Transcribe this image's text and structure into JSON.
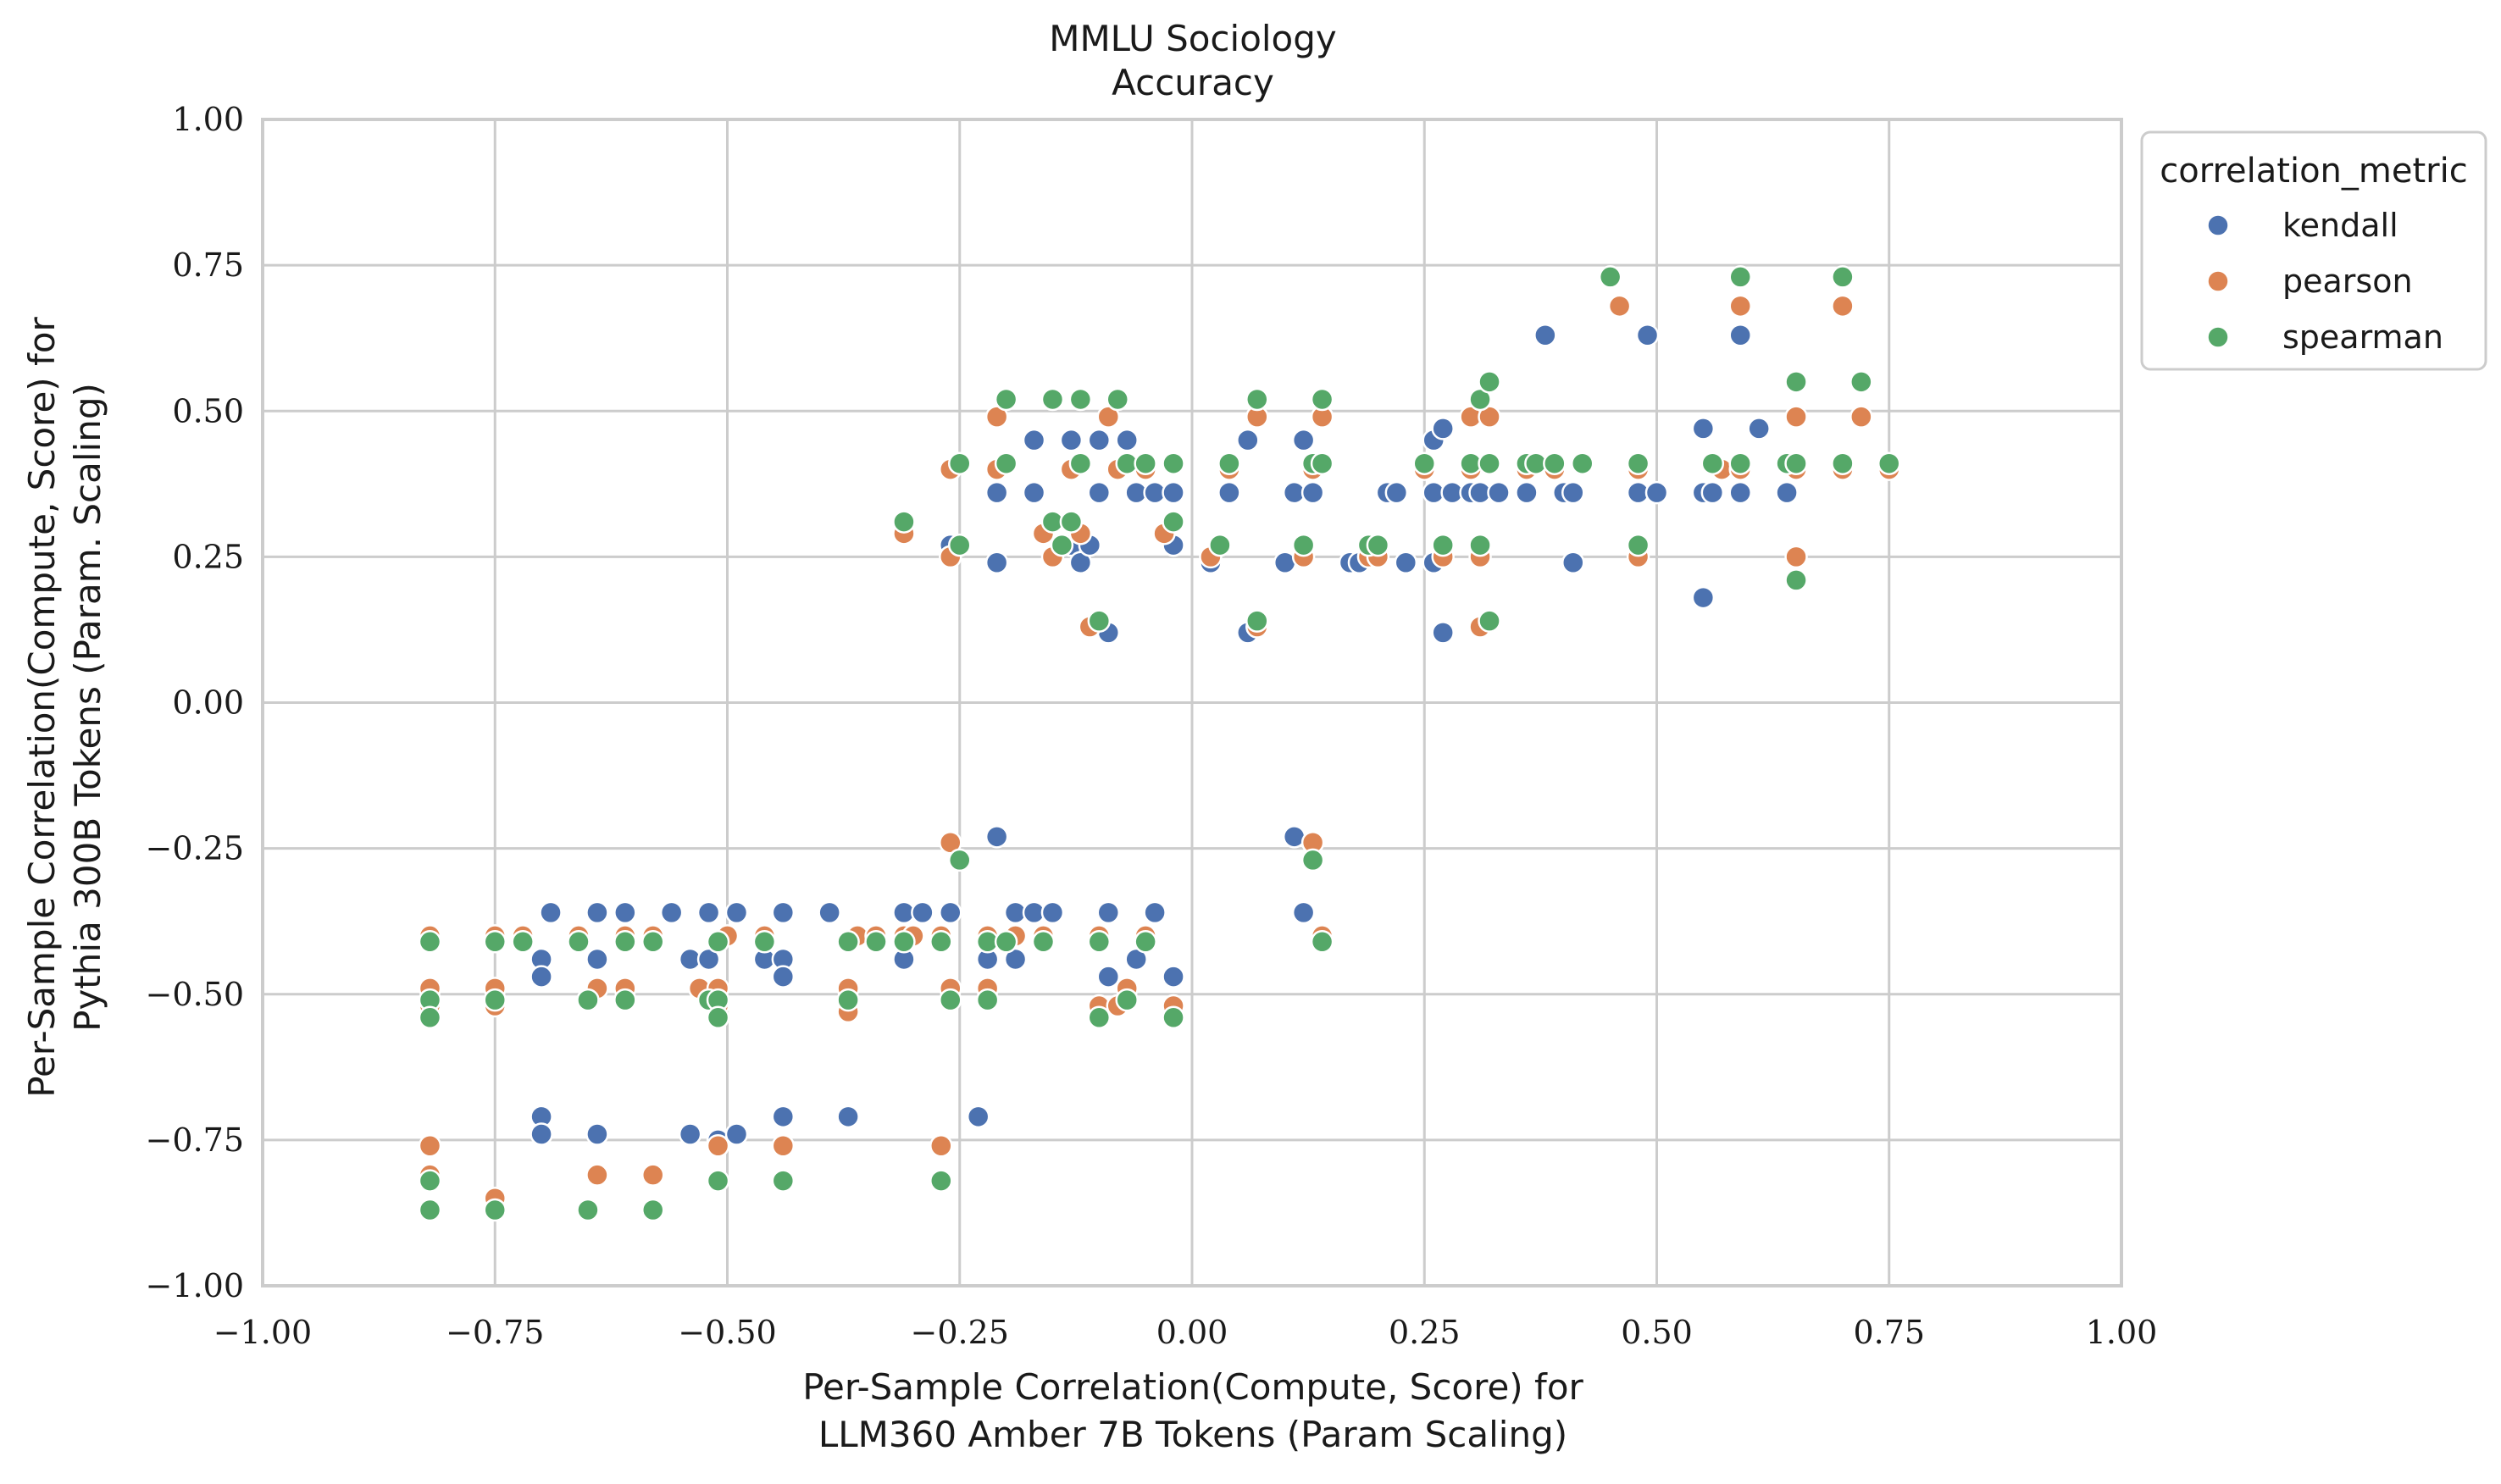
{
  "chart_data": {
    "type": "scatter",
    "title": "MMLU Sociology",
    "subtitle": "Accuracy",
    "xlabel": [
      "Per-Sample Correlation(Compute, Score) for",
      "LLM360 Amber 7B Tokens (Param Scaling)"
    ],
    "ylabel": [
      "Per-Sample Correlation(Compute, Score) for",
      "Pythia 300B Tokens (Param. Scaling)"
    ],
    "xlim": [
      -1.0,
      1.0
    ],
    "ylim": [
      -1.0,
      1.0
    ],
    "xticks": [
      -1.0,
      -0.75,
      -0.5,
      -0.25,
      0.0,
      0.25,
      0.5,
      0.75,
      1.0
    ],
    "yticks": [
      -1.0,
      -0.75,
      -0.5,
      -0.25,
      0.0,
      0.25,
      0.5,
      0.75,
      1.0
    ],
    "xtick_labels": [
      "−1.00",
      "−0.75",
      "−0.50",
      "−0.25",
      "0.00",
      "0.25",
      "0.50",
      "0.75",
      "1.00"
    ],
    "ytick_labels": [
      "−1.00",
      "−0.75",
      "−0.50",
      "−0.25",
      "0.00",
      "0.25",
      "0.50",
      "0.75",
      "1.00"
    ],
    "grid": true,
    "legend": {
      "title": "correlation_metric",
      "placement": "outside-top-right"
    },
    "series": [
      {
        "name": "kendall",
        "color": "#4c72b0",
        "points": [
          [
            -0.69,
            -0.36
          ],
          [
            -0.7,
            -0.44
          ],
          [
            -0.7,
            -0.47
          ],
          [
            -0.64,
            -0.36
          ],
          [
            -0.64,
            -0.44
          ],
          [
            -0.61,
            -0.36
          ],
          [
            -0.56,
            -0.36
          ],
          [
            -0.54,
            -0.44
          ],
          [
            -0.52,
            -0.36
          ],
          [
            -0.52,
            -0.44
          ],
          [
            -0.49,
            -0.36
          ],
          [
            -0.46,
            -0.44
          ],
          [
            -0.44,
            -0.36
          ],
          [
            -0.44,
            -0.44
          ],
          [
            -0.44,
            -0.47
          ],
          [
            -0.39,
            -0.36
          ],
          [
            -0.31,
            -0.36
          ],
          [
            -0.31,
            -0.44
          ],
          [
            -0.29,
            -0.36
          ],
          [
            -0.26,
            -0.36
          ],
          [
            -0.22,
            -0.44
          ],
          [
            -0.21,
            -0.23
          ],
          [
            -0.19,
            -0.36
          ],
          [
            -0.19,
            -0.44
          ],
          [
            -0.17,
            -0.36
          ],
          [
            -0.15,
            -0.36
          ],
          [
            -0.09,
            -0.36
          ],
          [
            -0.09,
            -0.47
          ],
          [
            -0.06,
            -0.44
          ],
          [
            -0.04,
            -0.36
          ],
          [
            -0.02,
            -0.47
          ],
          [
            -0.7,
            -0.71
          ],
          [
            -0.7,
            -0.74
          ],
          [
            -0.64,
            -0.74
          ],
          [
            -0.54,
            -0.74
          ],
          [
            -0.51,
            -0.75
          ],
          [
            -0.49,
            -0.74
          ],
          [
            -0.44,
            -0.71
          ],
          [
            -0.37,
            -0.71
          ],
          [
            -0.23,
            -0.71
          ],
          [
            0.11,
            -0.23
          ],
          [
            0.12,
            -0.36
          ],
          [
            -0.26,
            0.27
          ],
          [
            -0.21,
            0.36
          ],
          [
            -0.21,
            0.24
          ],
          [
            -0.17,
            0.45
          ],
          [
            -0.17,
            0.36
          ],
          [
            -0.13,
            0.45
          ],
          [
            -0.13,
            0.27
          ],
          [
            -0.12,
            0.24
          ],
          [
            -0.11,
            0.27
          ],
          [
            -0.1,
            0.45
          ],
          [
            -0.1,
            0.36
          ],
          [
            -0.09,
            0.12
          ],
          [
            -0.07,
            0.45
          ],
          [
            -0.06,
            0.36
          ],
          [
            -0.04,
            0.36
          ],
          [
            -0.02,
            0.36
          ],
          [
            -0.02,
            0.27
          ],
          [
            0.02,
            0.24
          ],
          [
            0.04,
            0.36
          ],
          [
            0.06,
            0.12
          ],
          [
            0.06,
            0.45
          ],
          [
            0.1,
            0.24
          ],
          [
            0.11,
            0.36
          ],
          [
            0.12,
            0.45
          ],
          [
            0.13,
            0.36
          ],
          [
            0.17,
            0.24
          ],
          [
            0.18,
            0.24
          ],
          [
            0.21,
            0.36
          ],
          [
            0.22,
            0.36
          ],
          [
            0.23,
            0.24
          ],
          [
            0.26,
            0.36
          ],
          [
            0.26,
            0.24
          ],
          [
            0.26,
            0.45
          ],
          [
            0.27,
            0.12
          ],
          [
            0.27,
            0.47
          ],
          [
            0.28,
            0.36
          ],
          [
            0.3,
            0.36
          ],
          [
            0.31,
            0.36
          ],
          [
            0.33,
            0.36
          ],
          [
            0.36,
            0.36
          ],
          [
            0.38,
            0.63
          ],
          [
            0.4,
            0.36
          ],
          [
            0.41,
            0.24
          ],
          [
            0.41,
            0.36
          ],
          [
            0.48,
            0.36
          ],
          [
            0.49,
            0.63
          ],
          [
            0.5,
            0.36
          ],
          [
            0.55,
            0.36
          ],
          [
            0.55,
            0.47
          ],
          [
            0.55,
            0.18
          ],
          [
            0.56,
            0.36
          ],
          [
            0.59,
            0.63
          ],
          [
            0.59,
            0.36
          ],
          [
            0.61,
            0.47
          ],
          [
            0.64,
            0.36
          ]
        ]
      },
      {
        "name": "pearson",
        "color": "#dd8452",
        "points": [
          [
            -0.82,
            -0.4
          ],
          [
            -0.82,
            -0.49
          ],
          [
            -0.82,
            -0.52
          ],
          [
            -0.75,
            -0.4
          ],
          [
            -0.75,
            -0.49
          ],
          [
            -0.75,
            -0.52
          ],
          [
            -0.72,
            -0.4
          ],
          [
            -0.66,
            -0.4
          ],
          [
            -0.64,
            -0.49
          ],
          [
            -0.61,
            -0.4
          ],
          [
            -0.61,
            -0.49
          ],
          [
            -0.58,
            -0.4
          ],
          [
            -0.53,
            -0.49
          ],
          [
            -0.51,
            -0.49
          ],
          [
            -0.51,
            -0.52
          ],
          [
            -0.5,
            -0.4
          ],
          [
            -0.46,
            -0.4
          ],
          [
            -0.37,
            -0.49
          ],
          [
            -0.37,
            -0.53
          ],
          [
            -0.36,
            -0.4
          ],
          [
            -0.34,
            -0.4
          ],
          [
            -0.31,
            -0.4
          ],
          [
            -0.3,
            -0.4
          ],
          [
            -0.27,
            -0.4
          ],
          [
            -0.26,
            -0.49
          ],
          [
            -0.26,
            -0.24
          ],
          [
            -0.22,
            -0.4
          ],
          [
            -0.22,
            -0.49
          ],
          [
            -0.19,
            -0.4
          ],
          [
            -0.16,
            -0.4
          ],
          [
            -0.1,
            -0.4
          ],
          [
            -0.1,
            -0.52
          ],
          [
            -0.08,
            -0.52
          ],
          [
            -0.07,
            -0.49
          ],
          [
            -0.05,
            -0.4
          ],
          [
            -0.02,
            -0.52
          ],
          [
            -0.82,
            -0.76
          ],
          [
            -0.82,
            -0.81
          ],
          [
            -0.75,
            -0.85
          ],
          [
            -0.64,
            -0.81
          ],
          [
            -0.58,
            -0.81
          ],
          [
            -0.51,
            -0.76
          ],
          [
            -0.44,
            -0.76
          ],
          [
            -0.27,
            -0.76
          ],
          [
            0.13,
            -0.24
          ],
          [
            0.14,
            -0.4
          ],
          [
            -0.31,
            0.29
          ],
          [
            -0.26,
            0.4
          ],
          [
            -0.26,
            0.25
          ],
          [
            -0.21,
            0.49
          ],
          [
            -0.21,
            0.4
          ],
          [
            -0.16,
            0.29
          ],
          [
            -0.15,
            0.25
          ],
          [
            -0.13,
            0.4
          ],
          [
            -0.12,
            0.29
          ],
          [
            -0.11,
            0.13
          ],
          [
            -0.09,
            0.49
          ],
          [
            -0.08,
            0.4
          ],
          [
            -0.05,
            0.4
          ],
          [
            -0.03,
            0.29
          ],
          [
            0.02,
            0.25
          ],
          [
            0.04,
            0.4
          ],
          [
            0.07,
            0.13
          ],
          [
            0.07,
            0.49
          ],
          [
            0.12,
            0.25
          ],
          [
            0.13,
            0.4
          ],
          [
            0.14,
            0.49
          ],
          [
            0.19,
            0.25
          ],
          [
            0.2,
            0.25
          ],
          [
            0.25,
            0.4
          ],
          [
            0.27,
            0.25
          ],
          [
            0.3,
            0.4
          ],
          [
            0.3,
            0.49
          ],
          [
            0.31,
            0.25
          ],
          [
            0.31,
            0.13
          ],
          [
            0.32,
            0.49
          ],
          [
            0.36,
            0.4
          ],
          [
            0.39,
            0.4
          ],
          [
            0.46,
            0.68
          ],
          [
            0.48,
            0.25
          ],
          [
            0.48,
            0.4
          ],
          [
            0.57,
            0.4
          ],
          [
            0.59,
            0.68
          ],
          [
            0.59,
            0.4
          ],
          [
            0.65,
            0.49
          ],
          [
            0.65,
            0.4
          ],
          [
            0.65,
            0.25
          ],
          [
            0.7,
            0.68
          ],
          [
            0.7,
            0.4
          ],
          [
            0.72,
            0.49
          ],
          [
            0.75,
            0.4
          ]
        ]
      },
      {
        "name": "spearman",
        "color": "#55a868",
        "points": [
          [
            -0.82,
            -0.41
          ],
          [
            -0.82,
            -0.51
          ],
          [
            -0.82,
            -0.54
          ],
          [
            -0.75,
            -0.41
          ],
          [
            -0.75,
            -0.51
          ],
          [
            -0.72,
            -0.41
          ],
          [
            -0.66,
            -0.41
          ],
          [
            -0.65,
            -0.51
          ],
          [
            -0.61,
            -0.41
          ],
          [
            -0.61,
            -0.51
          ],
          [
            -0.58,
            -0.41
          ],
          [
            -0.52,
            -0.51
          ],
          [
            -0.51,
            -0.41
          ],
          [
            -0.51,
            -0.51
          ],
          [
            -0.51,
            -0.54
          ],
          [
            -0.46,
            -0.41
          ],
          [
            -0.37,
            -0.41
          ],
          [
            -0.37,
            -0.51
          ],
          [
            -0.34,
            -0.41
          ],
          [
            -0.31,
            -0.41
          ],
          [
            -0.27,
            -0.41
          ],
          [
            -0.26,
            -0.51
          ],
          [
            -0.25,
            -0.27
          ],
          [
            -0.22,
            -0.41
          ],
          [
            -0.22,
            -0.51
          ],
          [
            -0.2,
            -0.41
          ],
          [
            -0.16,
            -0.41
          ],
          [
            -0.1,
            -0.41
          ],
          [
            -0.1,
            -0.54
          ],
          [
            -0.07,
            -0.51
          ],
          [
            -0.05,
            -0.41
          ],
          [
            -0.02,
            -0.54
          ],
          [
            -0.82,
            -0.82
          ],
          [
            -0.82,
            -0.87
          ],
          [
            -0.75,
            -0.87
          ],
          [
            -0.65,
            -0.87
          ],
          [
            -0.58,
            -0.87
          ],
          [
            -0.51,
            -0.82
          ],
          [
            -0.44,
            -0.82
          ],
          [
            -0.27,
            -0.82
          ],
          [
            0.13,
            -0.27
          ],
          [
            0.14,
            -0.41
          ],
          [
            -0.31,
            0.31
          ],
          [
            -0.25,
            0.41
          ],
          [
            -0.25,
            0.27
          ],
          [
            -0.2,
            0.52
          ],
          [
            -0.2,
            0.41
          ],
          [
            -0.15,
            0.52
          ],
          [
            -0.15,
            0.31
          ],
          [
            -0.14,
            0.27
          ],
          [
            -0.13,
            0.31
          ],
          [
            -0.12,
            0.52
          ],
          [
            -0.12,
            0.41
          ],
          [
            -0.1,
            0.14
          ],
          [
            -0.08,
            0.52
          ],
          [
            -0.07,
            0.41
          ],
          [
            -0.05,
            0.41
          ],
          [
            -0.02,
            0.41
          ],
          [
            -0.02,
            0.31
          ],
          [
            0.03,
            0.27
          ],
          [
            0.04,
            0.41
          ],
          [
            0.07,
            0.14
          ],
          [
            0.07,
            0.52
          ],
          [
            0.12,
            0.27
          ],
          [
            0.13,
            0.41
          ],
          [
            0.14,
            0.52
          ],
          [
            0.14,
            0.41
          ],
          [
            0.19,
            0.27
          ],
          [
            0.2,
            0.27
          ],
          [
            0.25,
            0.41
          ],
          [
            0.27,
            0.27
          ],
          [
            0.3,
            0.41
          ],
          [
            0.31,
            0.52
          ],
          [
            0.31,
            0.27
          ],
          [
            0.32,
            0.41
          ],
          [
            0.32,
            0.14
          ],
          [
            0.32,
            0.55
          ],
          [
            0.36,
            0.41
          ],
          [
            0.37,
            0.41
          ],
          [
            0.39,
            0.41
          ],
          [
            0.42,
            0.41
          ],
          [
            0.45,
            0.73
          ],
          [
            0.48,
            0.41
          ],
          [
            0.48,
            0.27
          ],
          [
            0.56,
            0.41
          ],
          [
            0.59,
            0.73
          ],
          [
            0.59,
            0.41
          ],
          [
            0.64,
            0.41
          ],
          [
            0.65,
            0.55
          ],
          [
            0.65,
            0.41
          ],
          [
            0.65,
            0.21
          ],
          [
            0.7,
            0.73
          ],
          [
            0.7,
            0.41
          ],
          [
            0.72,
            0.55
          ],
          [
            0.75,
            0.41
          ]
        ]
      }
    ]
  }
}
